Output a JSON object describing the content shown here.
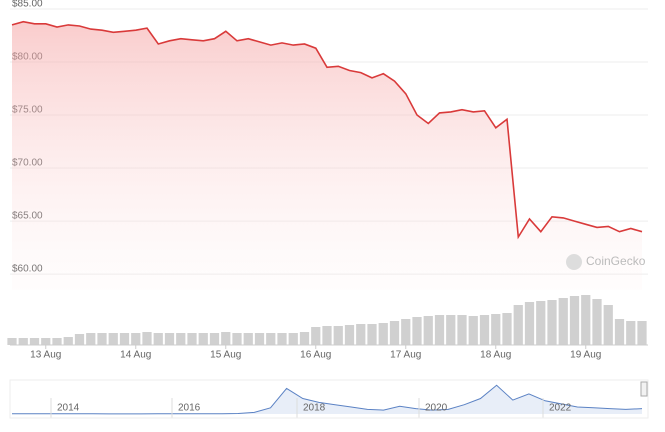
{
  "chart_data": {
    "type": "line",
    "categories": [
      null,
      null,
      null,
      "13 Aug",
      null,
      null,
      null,
      null,
      null,
      null,
      null,
      "14 Aug",
      null,
      null,
      null,
      null,
      null,
      null,
      null,
      "15 Aug",
      null,
      null,
      null,
      null,
      null,
      null,
      null,
      "16 Aug",
      null,
      null,
      null,
      null,
      null,
      null,
      null,
      "17 Aug",
      null,
      null,
      null,
      null,
      null,
      null,
      null,
      "18 Aug",
      null,
      null,
      null,
      null,
      null,
      null,
      null,
      "19 Aug",
      null,
      null,
      null,
      null,
      null
    ],
    "values": [
      83.5,
      83.8,
      83.6,
      83.6,
      83.3,
      83.5,
      83.4,
      83.1,
      83.0,
      82.8,
      82.9,
      83.0,
      83.2,
      81.7,
      82.0,
      82.2,
      82.1,
      82.0,
      82.2,
      82.9,
      82.0,
      82.2,
      81.9,
      81.6,
      81.8,
      81.6,
      81.7,
      81.3,
      79.5,
      79.6,
      79.2,
      79.0,
      78.5,
      78.9,
      78.2,
      77.0,
      75.0,
      74.2,
      75.2,
      75.3,
      75.5,
      75.3,
      75.4,
      73.8,
      74.6,
      63.5,
      65.2,
      64.0,
      65.4,
      65.3,
      65.0,
      64.7,
      64.4,
      64.5,
      64.0,
      64.3,
      64.0
    ],
    "color": "#d93a3a",
    "ylim": [
      58.5,
      85
    ],
    "yticks": [
      {
        "value": 85,
        "label": "$85.00"
      },
      {
        "value": 80,
        "label": "$80.00"
      },
      {
        "value": 75,
        "label": "$75.00"
      },
      {
        "value": 70,
        "label": "$70.00"
      },
      {
        "value": 65,
        "label": "$65.00"
      },
      {
        "value": 60,
        "label": "$60.00"
      }
    ],
    "grid": true,
    "volume": {
      "color": "#d0d0d0",
      "ylim": [
        0,
        50
      ],
      "values": [
        7,
        7,
        7,
        7,
        7,
        8,
        11,
        12,
        12,
        12,
        12,
        12,
        13,
        12,
        12,
        12,
        12,
        12,
        12,
        13,
        12,
        12,
        12,
        12,
        12,
        12,
        13,
        18,
        19,
        19,
        20,
        21,
        21,
        22,
        24,
        26,
        28,
        29,
        30,
        30,
        30,
        29,
        30,
        31,
        32,
        40,
        43,
        44,
        45,
        47,
        49,
        50,
        46,
        40,
        26,
        24,
        24
      ]
    },
    "navigator": {
      "color": "#5b82c4",
      "ylim": [
        0,
        400
      ],
      "labels": [
        "2014",
        "2016",
        "2018",
        "2020",
        "2022"
      ],
      "values": [
        3,
        3,
        3,
        2,
        2,
        2,
        1,
        1,
        1,
        2,
        2,
        2,
        3,
        4,
        6,
        20,
        80,
        330,
        200,
        150,
        120,
        90,
        60,
        50,
        100,
        70,
        50,
        60,
        120,
        200,
        370,
        180,
        260,
        170,
        130,
        90,
        80,
        70,
        60,
        70
      ]
    },
    "watermark": "CoinGecko"
  }
}
